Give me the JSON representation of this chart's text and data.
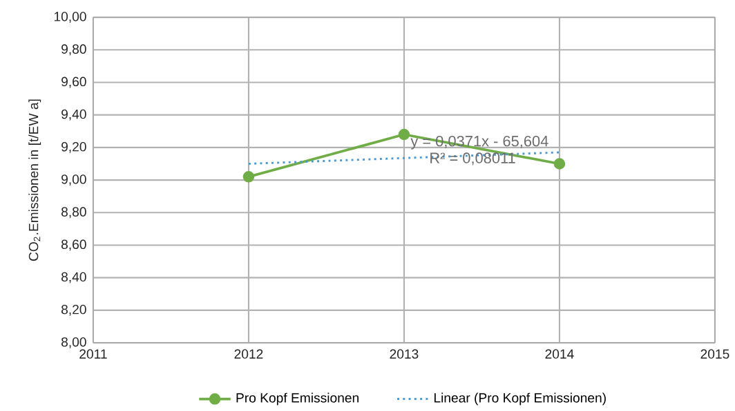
{
  "chart_data": {
    "type": "line",
    "ylabel": "CO$_{2}$.Emissionen in [t/EW a]",
    "x": [
      2012,
      2013,
      2014
    ],
    "series": [
      {
        "name": "Pro Kopf Emissionen",
        "color": "#70ad47",
        "values": [
          9.02,
          9.28,
          9.1
        ],
        "marker": "circle",
        "line_style": "solid"
      },
      {
        "name": "Linear (Pro Kopf Emissionen)",
        "color": "#4a9bd4",
        "x": [
          2012,
          2014
        ],
        "values": [
          9.1,
          9.17
        ],
        "marker": "none",
        "line_style": "dotted"
      }
    ],
    "xlim": [
      2011,
      2015
    ],
    "xticks": [
      2011,
      2012,
      2013,
      2014,
      2015
    ],
    "ylim": [
      8,
      10
    ],
    "yticks": [
      {
        "value": 8,
        "label": "8,00"
      },
      {
        "value": 8.2,
        "label": "8,20"
      },
      {
        "value": 8.4,
        "label": "8,40"
      },
      {
        "value": 8.6,
        "label": "8,60"
      },
      {
        "value": 8.8,
        "label": "8,80"
      },
      {
        "value": 9,
        "label": "9,00"
      },
      {
        "value": 9.2,
        "label": "9,20"
      },
      {
        "value": 9.4,
        "label": "9,40"
      },
      {
        "value": 9.6,
        "label": "9,60"
      },
      {
        "value": 9.8,
        "label": "9,80"
      },
      {
        "value": 10,
        "label": "10,00"
      }
    ],
    "annotations": [
      "y = 0,0371x - 65,604",
      "R² = 0,08011"
    ],
    "grid": true,
    "legend": "bottom"
  }
}
